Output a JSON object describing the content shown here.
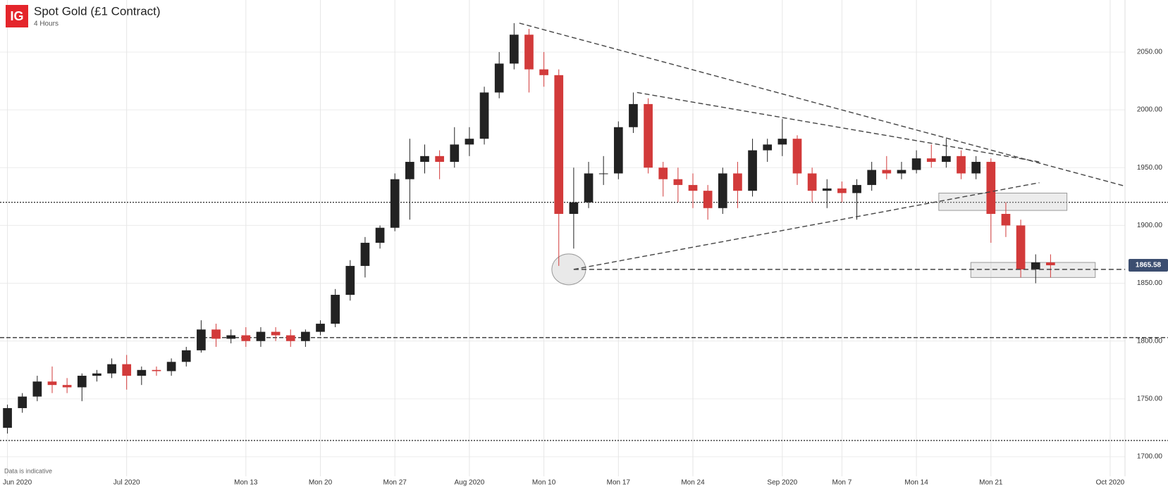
{
  "chart_data": {
    "type": "candlestick",
    "logo": "IG",
    "title": "Spot Gold (£1 Contract)",
    "subtitle": "4 Hours",
    "note": "Data is indicative",
    "up_color": "#222222",
    "down_color": "#d23a3a",
    "grid": true,
    "categories": [
      "Jun 2020",
      null,
      null,
      null,
      null,
      null,
      null,
      null,
      "Jul 2020",
      null,
      null,
      null,
      null,
      null,
      null,
      null,
      "Mon 13",
      null,
      null,
      null,
      null,
      "Mon 20",
      null,
      null,
      null,
      null,
      "Mon 27",
      null,
      null,
      null,
      null,
      "Aug 2020",
      null,
      null,
      null,
      null,
      "Mon 10",
      null,
      null,
      null,
      null,
      "Mon 17",
      null,
      null,
      null,
      null,
      "Mon 24",
      null,
      null,
      null,
      null,
      null,
      "Sep 2020",
      null,
      null,
      null,
      "Mon 7",
      null,
      null,
      null,
      null,
      "Mon 14",
      null,
      null,
      null,
      null,
      "Mon 21",
      null,
      null,
      null,
      null,
      null,
      null,
      null,
      "Oct 2020"
    ],
    "ohlc": [
      [
        1725,
        1745,
        1720,
        1742
      ],
      [
        1742,
        1755,
        1738,
        1752
      ],
      [
        1752,
        1770,
        1748,
        1765
      ],
      [
        1765,
        1778,
        1755,
        1762
      ],
      [
        1762,
        1768,
        1755,
        1760
      ],
      [
        1760,
        1772,
        1748,
        1770
      ],
      [
        1770,
        1775,
        1765,
        1772
      ],
      [
        1772,
        1785,
        1768,
        1780
      ],
      [
        1780,
        1788,
        1758,
        1770
      ],
      [
        1770,
        1778,
        1762,
        1775
      ],
      [
        1775,
        1778,
        1770,
        1774
      ],
      [
        1774,
        1785,
        1770,
        1782
      ],
      [
        1782,
        1795,
        1778,
        1792
      ],
      [
        1792,
        1818,
        1790,
        1810
      ],
      [
        1810,
        1815,
        1795,
        1802
      ],
      [
        1802,
        1810,
        1798,
        1805
      ],
      [
        1805,
        1812,
        1795,
        1800
      ],
      [
        1800,
        1812,
        1795,
        1808
      ],
      [
        1808,
        1812,
        1800,
        1805
      ],
      [
        1805,
        1810,
        1795,
        1800
      ],
      [
        1800,
        1810,
        1795,
        1808
      ],
      [
        1808,
        1818,
        1805,
        1815
      ],
      [
        1815,
        1845,
        1812,
        1840
      ],
      [
        1840,
        1870,
        1835,
        1865
      ],
      [
        1865,
        1890,
        1855,
        1885
      ],
      [
        1885,
        1900,
        1880,
        1898
      ],
      [
        1898,
        1945,
        1895,
        1940
      ],
      [
        1940,
        1975,
        1905,
        1955
      ],
      [
        1955,
        1970,
        1945,
        1960
      ],
      [
        1960,
        1965,
        1940,
        1955
      ],
      [
        1955,
        1985,
        1950,
        1970
      ],
      [
        1970,
        1985,
        1960,
        1975
      ],
      [
        1975,
        2020,
        1970,
        2015
      ],
      [
        2015,
        2050,
        2010,
        2040
      ],
      [
        2040,
        2075,
        2035,
        2065
      ],
      [
        2065,
        2070,
        2015,
        2035
      ],
      [
        2035,
        2050,
        2020,
        2030
      ],
      [
        2030,
        2035,
        1865,
        1910
      ],
      [
        1910,
        1950,
        1880,
        1920
      ],
      [
        1920,
        1955,
        1915,
        1945
      ],
      [
        1945,
        1960,
        1935,
        1945
      ],
      [
        1945,
        1990,
        1940,
        1985
      ],
      [
        1985,
        2015,
        1980,
        2005
      ],
      [
        2005,
        2010,
        1945,
        1950
      ],
      [
        1950,
        1955,
        1925,
        1940
      ],
      [
        1940,
        1950,
        1920,
        1935
      ],
      [
        1935,
        1945,
        1915,
        1930
      ],
      [
        1930,
        1935,
        1905,
        1915
      ],
      [
        1915,
        1950,
        1910,
        1945
      ],
      [
        1945,
        1955,
        1915,
        1930
      ],
      [
        1930,
        1975,
        1925,
        1965
      ],
      [
        1965,
        1975,
        1955,
        1970
      ],
      [
        1970,
        1992,
        1960,
        1975
      ],
      [
        1975,
        1978,
        1935,
        1945
      ],
      [
        1945,
        1950,
        1920,
        1930
      ],
      [
        1930,
        1940,
        1915,
        1932
      ],
      [
        1932,
        1938,
        1920,
        1928
      ],
      [
        1928,
        1940,
        1905,
        1935
      ],
      [
        1935,
        1955,
        1930,
        1948
      ],
      [
        1948,
        1960,
        1940,
        1945
      ],
      [
        1945,
        1955,
        1940,
        1948
      ],
      [
        1948,
        1965,
        1945,
        1958
      ],
      [
        1958,
        1970,
        1950,
        1955
      ],
      [
        1955,
        1975,
        1950,
        1960
      ],
      [
        1960,
        1965,
        1940,
        1945
      ],
      [
        1945,
        1960,
        1940,
        1955
      ],
      [
        1955,
        1958,
        1885,
        1910
      ],
      [
        1910,
        1920,
        1890,
        1900
      ],
      [
        1900,
        1905,
        1855,
        1862
      ],
      [
        1862,
        1875,
        1850,
        1868
      ],
      [
        1868,
        1875,
        1855,
        1865.58
      ],
      null,
      null,
      null,
      null
    ],
    "last_price": {
      "value": 1865.58,
      "label": "1865.58"
    },
    "ylim": [
      1683,
      2095
    ],
    "yticks": [
      {
        "value": 1700,
        "label": "1700.00"
      },
      {
        "value": 1750,
        "label": "1750.00"
      },
      {
        "value": 1800,
        "label": "1800.00"
      },
      {
        "value": 1850,
        "label": "1850.00"
      },
      {
        "value": 1900,
        "label": "1900.00"
      },
      {
        "value": 1950,
        "label": "1950.00"
      },
      {
        "value": 2000,
        "label": "2000.00"
      },
      {
        "value": 2050,
        "label": "2050.00"
      }
    ],
    "levels": [
      {
        "value": 1920,
        "style": "dotted"
      },
      {
        "value": 1803,
        "style": "dashed"
      },
      {
        "value": 1714,
        "style": "dotted"
      }
    ],
    "trendlines": [
      {
        "x": [
          34.35,
          75
        ],
        "y": [
          2075,
          1934
        ]
      },
      {
        "x": [
          42.25,
          69.25
        ],
        "y": [
          2015,
          1955
        ]
      },
      {
        "x": [
          38,
          69.25
        ],
        "y": [
          1862,
          1937
        ]
      },
      {
        "x": [
          38,
          75
        ],
        "y": [
          1862,
          1862
        ]
      }
    ],
    "zones": [
      {
        "x": [
          62.5,
          71.1
        ],
        "y": [
          1913,
          1928
        ]
      },
      {
        "x": [
          64.65,
          73
        ],
        "y": [
          1855,
          1868
        ]
      }
    ],
    "highlight": {
      "x": 38,
      "y": 1862
    }
  }
}
